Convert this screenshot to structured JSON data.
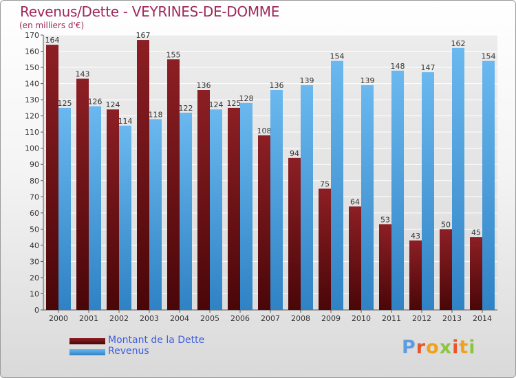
{
  "header": {
    "title": "Revenus/Dette - VEYRINES-DE-DOMME",
    "subtitle": "(en milliers d'€)"
  },
  "legend": {
    "items": [
      {
        "label": "Montant de la Dette",
        "color": "#7a1a1f"
      },
      {
        "label": "Revenus",
        "color": "#4aa3e4"
      }
    ]
  },
  "logo": {
    "text": "Proxiti"
  },
  "colors": {
    "title": "#a0285a",
    "debt_top": "#8c1f24",
    "debt_bottom": "#4a0608",
    "revenue_top": "#6ab8ef",
    "revenue_bottom": "#2f82c4",
    "grid": "#ffffff",
    "plot_background": "#e4e4e4"
  },
  "chart_data": {
    "type": "bar",
    "title": "Revenus/Dette - VEYRINES-DE-DOMME",
    "ylabel": "(en milliers d'€)",
    "xlabel": "",
    "categories": [
      "2000",
      "2001",
      "2002",
      "2003",
      "2004",
      "2005",
      "2006",
      "2007",
      "2008",
      "2009",
      "2010",
      "2011",
      "2012",
      "2013",
      "2014"
    ],
    "series": [
      {
        "name": "Montant de la Dette",
        "values": [
          164,
          143,
          124,
          167,
          155,
          136,
          125,
          108,
          94,
          75,
          64,
          53,
          43,
          50,
          45
        ]
      },
      {
        "name": "Revenus",
        "values": [
          125,
          126,
          114,
          118,
          122,
          124,
          128,
          136,
          139,
          154,
          139,
          148,
          147,
          162,
          154
        ]
      }
    ],
    "ylim": [
      0,
      170
    ],
    "yticks": [
      0,
      10,
      20,
      30,
      40,
      50,
      60,
      70,
      80,
      90,
      100,
      110,
      120,
      130,
      140,
      150,
      160,
      170
    ],
    "grid": true,
    "legend_position": "bottom-left"
  }
}
